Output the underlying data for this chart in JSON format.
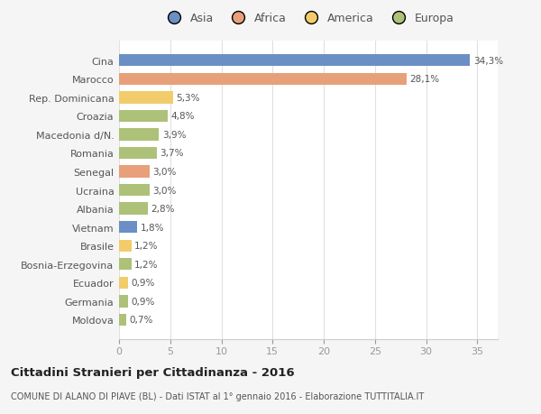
{
  "categories": [
    "Moldova",
    "Germania",
    "Ecuador",
    "Bosnia-Erzegovina",
    "Brasile",
    "Vietnam",
    "Albania",
    "Ucraina",
    "Senegal",
    "Romania",
    "Macedonia d/N.",
    "Croazia",
    "Rep. Dominicana",
    "Marocco",
    "Cina"
  ],
  "values": [
    0.7,
    0.9,
    0.9,
    1.2,
    1.2,
    1.8,
    2.8,
    3.0,
    3.0,
    3.7,
    3.9,
    4.8,
    5.3,
    28.1,
    34.3
  ],
  "labels": [
    "0,7%",
    "0,9%",
    "0,9%",
    "1,2%",
    "1,2%",
    "1,8%",
    "2,8%",
    "3,0%",
    "3,0%",
    "3,7%",
    "3,9%",
    "4,8%",
    "5,3%",
    "28,1%",
    "34,3%"
  ],
  "colors": [
    "#adc178",
    "#adc178",
    "#f2cc6b",
    "#adc178",
    "#f2cc6b",
    "#6b8fc4",
    "#adc178",
    "#adc178",
    "#e8a07a",
    "#adc178",
    "#adc178",
    "#adc178",
    "#f2cc6b",
    "#e8a07a",
    "#6b8fc4"
  ],
  "legend_labels": [
    "Asia",
    "Africa",
    "America",
    "Europa"
  ],
  "legend_colors": [
    "#6b8fc4",
    "#e8a07a",
    "#f2cc6b",
    "#adc178"
  ],
  "title": "Cittadini Stranieri per Cittadinanza - 2016",
  "subtitle": "COMUNE DI ALANO DI PIAVE (BL) - Dati ISTAT al 1° gennaio 2016 - Elaborazione TUTTITALIA.IT",
  "xlim": [
    0,
    37
  ],
  "xticks": [
    0,
    5,
    10,
    15,
    20,
    25,
    30,
    35
  ],
  "background_color": "#f5f5f5",
  "plot_background": "#ffffff",
  "grid_color": "#e0e0e0"
}
